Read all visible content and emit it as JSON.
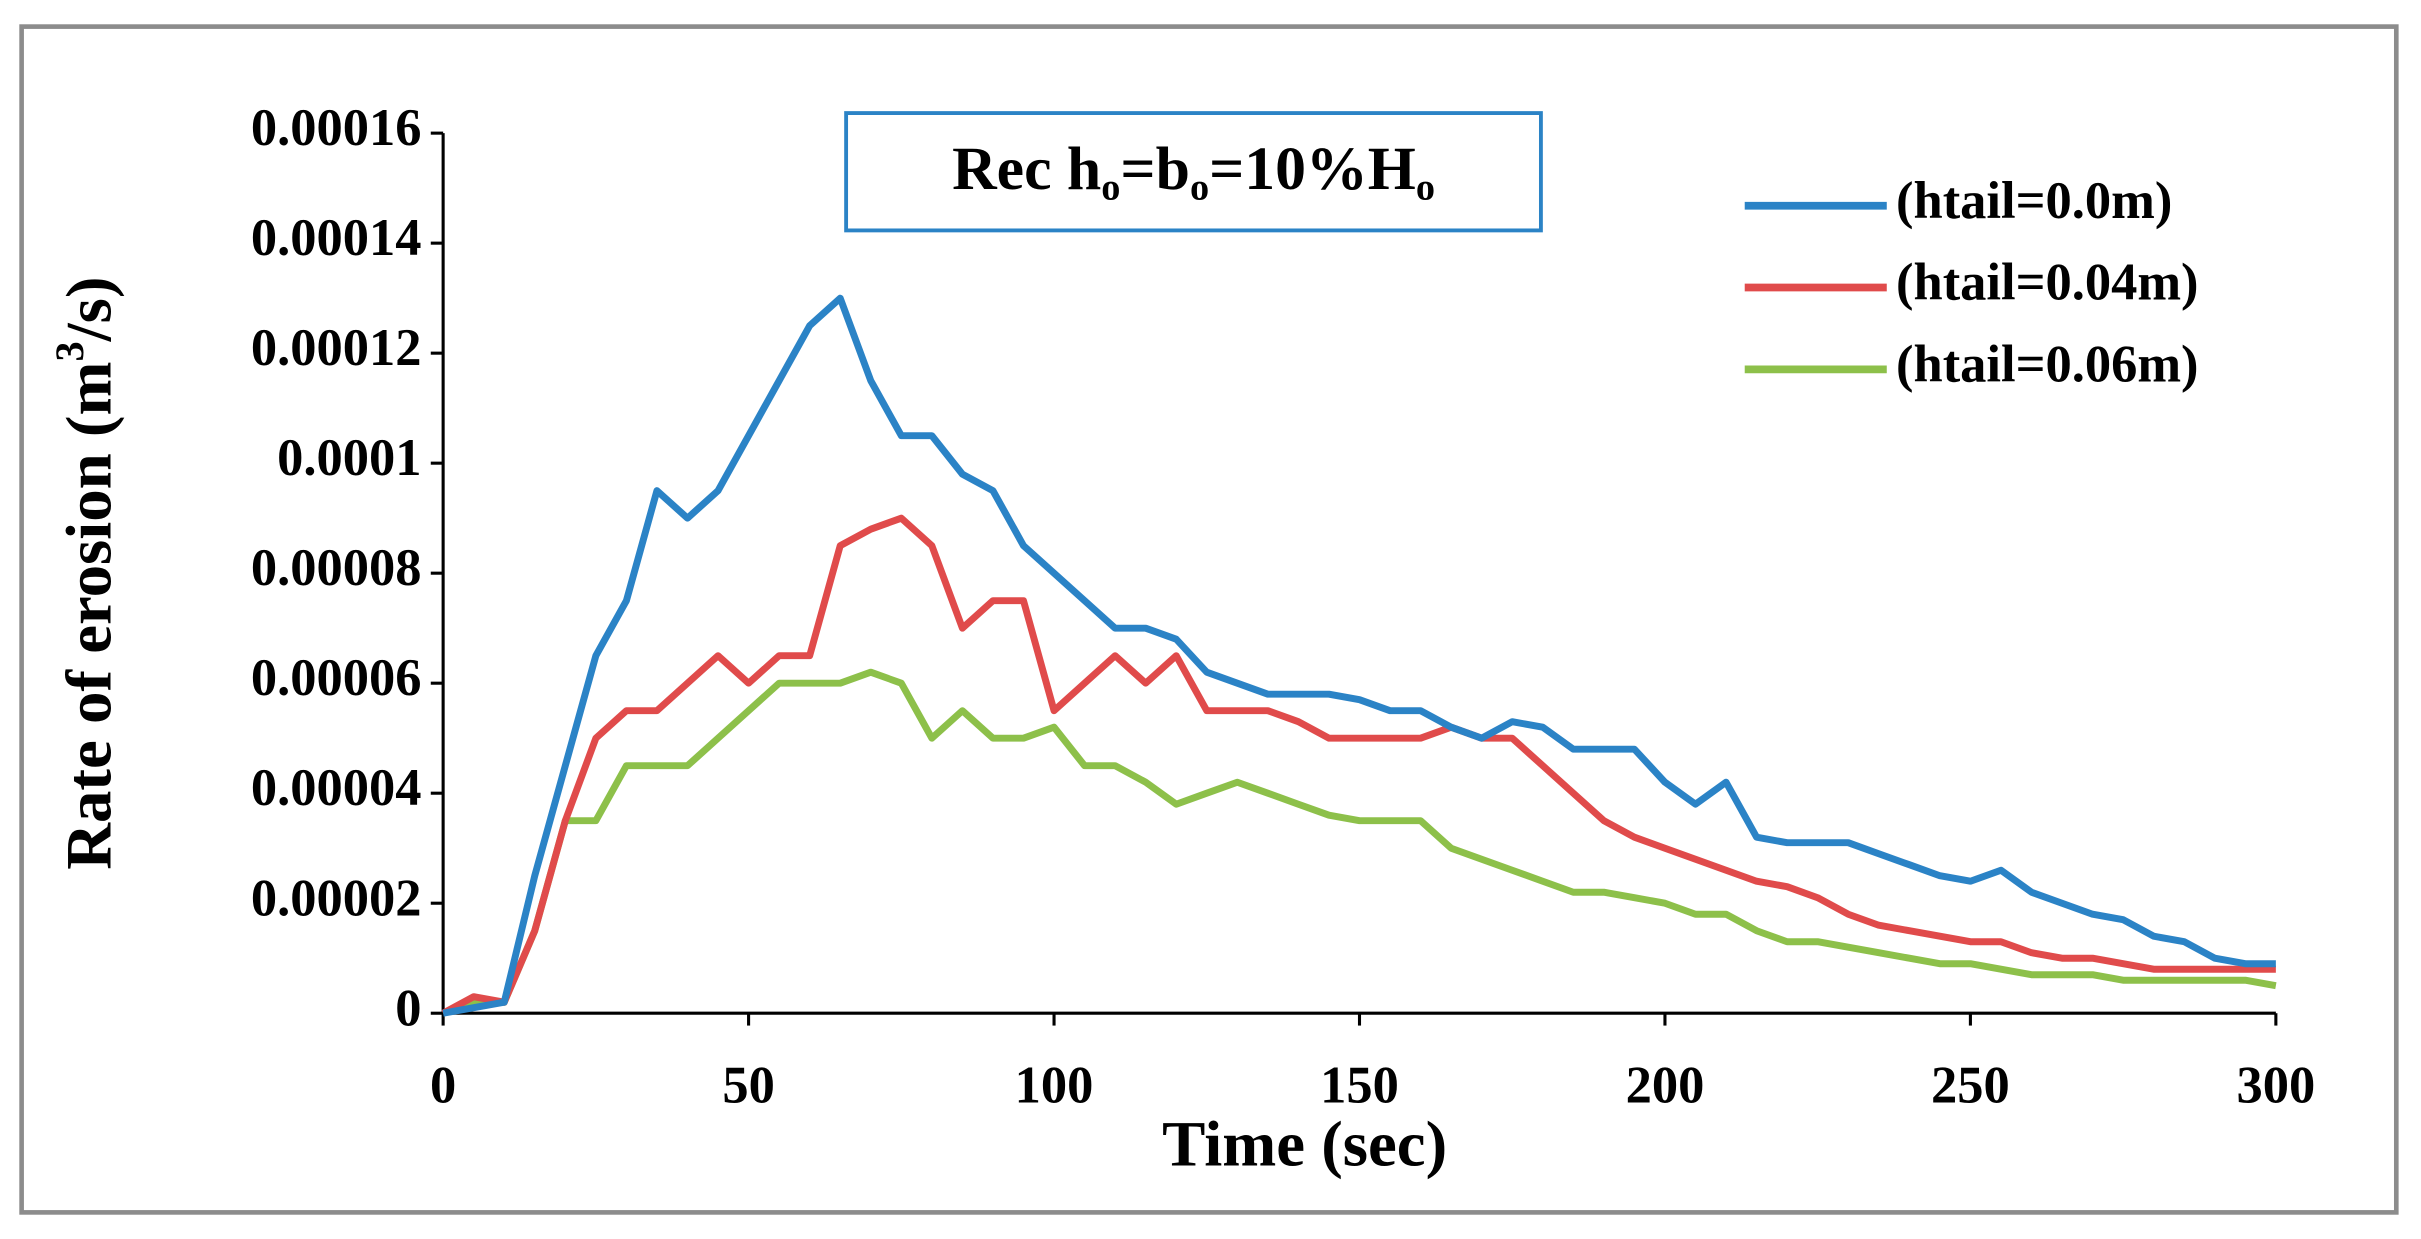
{
  "chart_data": {
    "type": "line",
    "title": [
      "Rec h",
      "o",
      "=b",
      "o",
      "=10%H",
      "o"
    ],
    "xlabel": "Time (sec)",
    "ylabel": [
      "Rate of erosion (m",
      "3",
      "/s)"
    ],
    "x": [
      0,
      5,
      10,
      15,
      20,
      25,
      30,
      35,
      40,
      45,
      50,
      55,
      60,
      65,
      70,
      75,
      80,
      85,
      90,
      95,
      100,
      105,
      110,
      115,
      120,
      125,
      130,
      135,
      140,
      145,
      150,
      155,
      160,
      165,
      170,
      175,
      180,
      185,
      190,
      195,
      200,
      205,
      210,
      215,
      220,
      225,
      230,
      235,
      240,
      245,
      250,
      255,
      260,
      265,
      270,
      275,
      280,
      285,
      290,
      295,
      300
    ],
    "series": [
      {
        "name": "(htail=0.0m)",
        "color": "#2b83c6",
        "values": [
          0,
          1e-06,
          2e-06,
          2.5e-05,
          4.5e-05,
          6.5e-05,
          7.5e-05,
          9.5e-05,
          9e-05,
          9.5e-05,
          0.000105,
          0.000115,
          0.000125,
          0.00013,
          0.000115,
          0.000105,
          0.000105,
          9.8e-05,
          9.5e-05,
          8.5e-05,
          8e-05,
          7.5e-05,
          7e-05,
          7e-05,
          6.8e-05,
          6.2e-05,
          6e-05,
          5.8e-05,
          5.8e-05,
          5.8e-05,
          5.7e-05,
          5.5e-05,
          5.5e-05,
          5.2e-05,
          5e-05,
          5.3e-05,
          5.2e-05,
          4.8e-05,
          4.8e-05,
          4.8e-05,
          4.2e-05,
          3.8e-05,
          4.2e-05,
          3.2e-05,
          3.1e-05,
          3.1e-05,
          3.1e-05,
          2.9e-05,
          2.7e-05,
          2.5e-05,
          2.4e-05,
          2.6e-05,
          2.2e-05,
          2e-05,
          1.8e-05,
          1.7e-05,
          1.4e-05,
          1.3e-05,
          1e-05,
          9e-06,
          9e-06
        ]
      },
      {
        "name": "(htail=0.04m)",
        "color": "#e04b4b",
        "values": [
          0,
          3e-06,
          2e-06,
          1.5e-05,
          3.5e-05,
          5e-05,
          5.5e-05,
          5.5e-05,
          6e-05,
          6.5e-05,
          6e-05,
          6.5e-05,
          6.5e-05,
          8.5e-05,
          8.8e-05,
          9e-05,
          8.5e-05,
          7e-05,
          7.5e-05,
          7.5e-05,
          5.5e-05,
          6e-05,
          6.5e-05,
          6e-05,
          6.5e-05,
          5.5e-05,
          5.5e-05,
          5.5e-05,
          5.3e-05,
          5e-05,
          5e-05,
          5e-05,
          5e-05,
          5.2e-05,
          5e-05,
          5e-05,
          4.5e-05,
          4e-05,
          3.5e-05,
          3.2e-05,
          3e-05,
          2.8e-05,
          2.6e-05,
          2.4e-05,
          2.3e-05,
          2.1e-05,
          1.8e-05,
          1.6e-05,
          1.5e-05,
          1.4e-05,
          1.3e-05,
          1.3e-05,
          1.1e-05,
          1e-05,
          1e-05,
          9e-06,
          8e-06,
          8e-06,
          8e-06,
          8e-06,
          8e-06
        ]
      },
      {
        "name": "(htail=0.06m)",
        "color": "#8dc04a",
        "values": [
          0,
          2e-06,
          2e-06,
          1.5e-05,
          3.5e-05,
          3.5e-05,
          4.5e-05,
          4.5e-05,
          4.5e-05,
          5e-05,
          5.5e-05,
          6e-05,
          6e-05,
          6e-05,
          6.2e-05,
          6e-05,
          5e-05,
          5.5e-05,
          5e-05,
          5e-05,
          5.2e-05,
          4.5e-05,
          4.5e-05,
          4.2e-05,
          3.8e-05,
          4e-05,
          4.2e-05,
          4e-05,
          3.8e-05,
          3.6e-05,
          3.5e-05,
          3.5e-05,
          3.5e-05,
          3e-05,
          2.8e-05,
          2.6e-05,
          2.4e-05,
          2.2e-05,
          2.2e-05,
          2.1e-05,
          2e-05,
          1.8e-05,
          1.8e-05,
          1.5e-05,
          1.3e-05,
          1.3e-05,
          1.2e-05,
          1.1e-05,
          1e-05,
          9e-06,
          9e-06,
          8e-06,
          7e-06,
          7e-06,
          7e-06,
          6e-06,
          6e-06,
          6e-06,
          6e-06,
          6e-06,
          5e-06
        ]
      }
    ],
    "xlim": [
      0,
      300
    ],
    "xticks": [
      0,
      50,
      100,
      150,
      200,
      250,
      300
    ],
    "ylim": [
      0,
      0.00016
    ],
    "yticks": [
      0,
      2e-05,
      4e-05,
      6e-05,
      8e-05,
      0.0001,
      0.00012,
      0.00014,
      0.00016
    ],
    "grid": false,
    "legend": "upper right"
  }
}
